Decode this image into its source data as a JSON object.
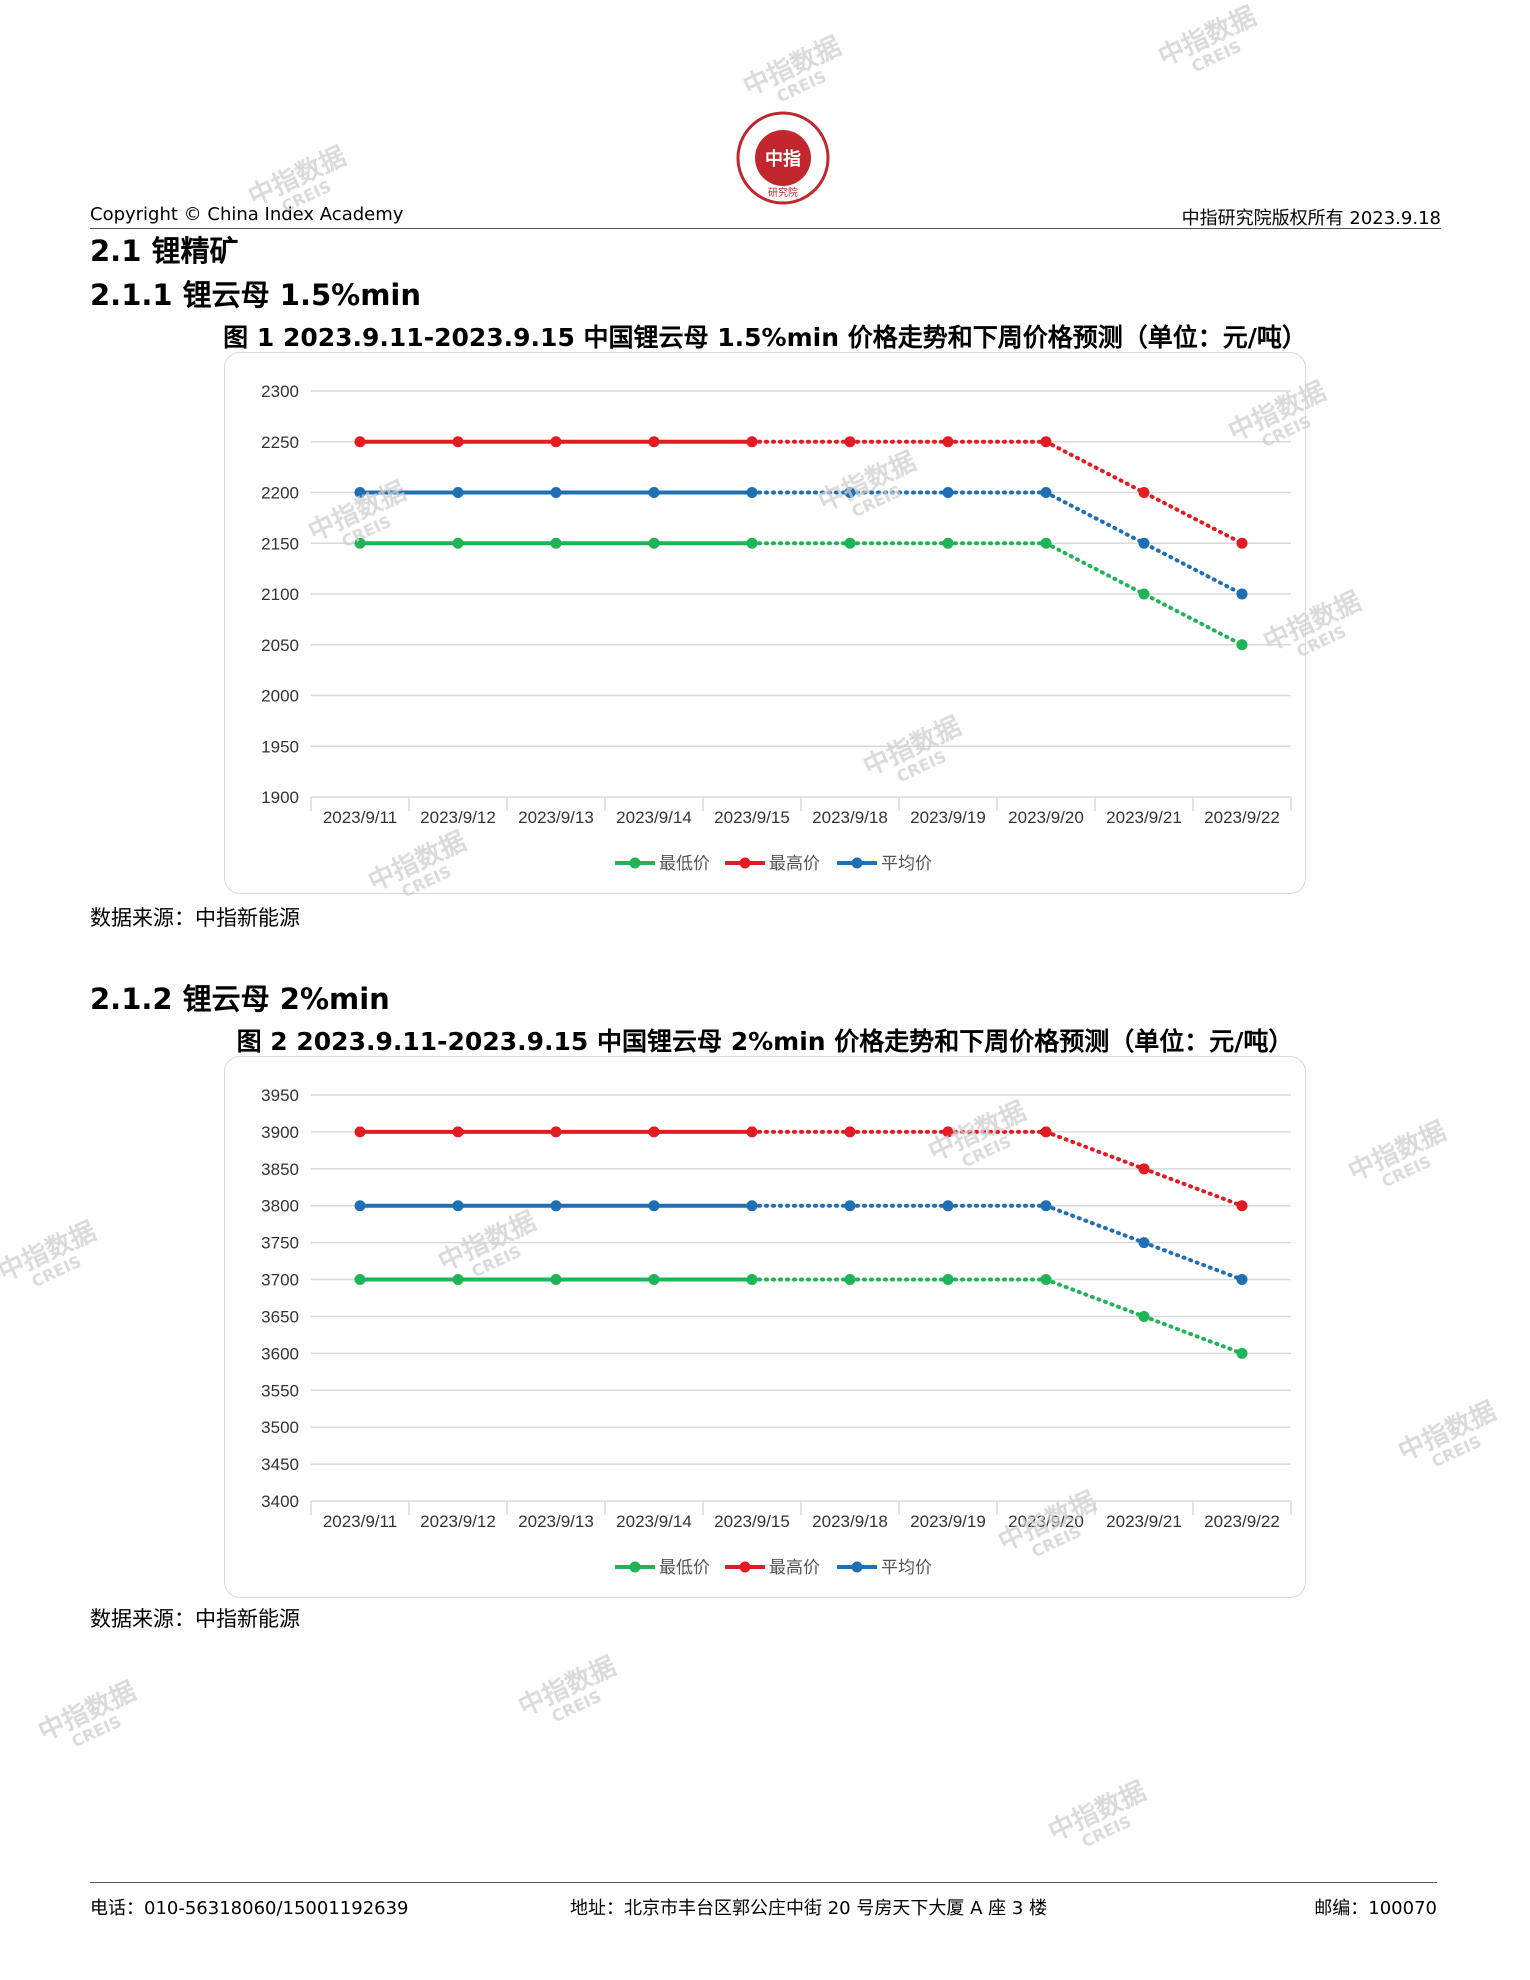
{
  "header": {
    "copyright": "Copyright © China Index Academy",
    "rights": "中指研究院版权所有 2023.9.18",
    "logo_text": "CHINA INDEX ACADEMY",
    "logo_center": "中指",
    "logo_bottom": "研究院"
  },
  "section": {
    "title": "2.1 锂精矿",
    "sub1": "2.1.1 锂云母 1.5%min",
    "sub2": "2.1.2 锂云母 2%min"
  },
  "source_note": "数据来源：中指新能源",
  "watermark": {
    "cn": "中指数据",
    "en": "CREIS"
  },
  "legend": [
    "最低价",
    "最高价",
    "平均价"
  ],
  "colors": {
    "min": "#1fb456",
    "max": "#e31b23",
    "avg": "#1f6fb5",
    "grid": "#d9d9d9"
  },
  "chart_data": [
    {
      "type": "line",
      "title": "图 1 2023.9.11-2023.9.15 中国锂云母 1.5%min 价格走势和下周价格预测（单位：元/吨）",
      "categories": [
        "2023/9/11",
        "2023/9/12",
        "2023/9/13",
        "2023/9/14",
        "2023/9/15",
        "2023/9/18",
        "2023/9/19",
        "2023/9/20",
        "2023/9/21",
        "2023/9/22"
      ],
      "ylim": [
        1900,
        2300
      ],
      "yticks": [
        1900,
        1950,
        2000,
        2050,
        2100,
        2150,
        2200,
        2250,
        2300
      ],
      "series": [
        {
          "name": "最低价",
          "key": "min",
          "values": [
            2150,
            2150,
            2150,
            2150,
            2150,
            2150,
            2150,
            2150,
            2100,
            2050
          ]
        },
        {
          "name": "最高价",
          "key": "max",
          "values": [
            2250,
            2250,
            2250,
            2250,
            2250,
            2250,
            2250,
            2250,
            2200,
            2150
          ]
        },
        {
          "name": "平均价",
          "key": "avg",
          "values": [
            2200,
            2200,
            2200,
            2200,
            2200,
            2200,
            2200,
            2200,
            2150,
            2100
          ]
        }
      ],
      "solid_through_index": 4,
      "grid": true,
      "legend_position": "bottom"
    },
    {
      "type": "line",
      "title": "图 2 2023.9.11-2023.9.15 中国锂云母 2%min 价格走势和下周价格预测（单位：元/吨）",
      "categories": [
        "2023/9/11",
        "2023/9/12",
        "2023/9/13",
        "2023/9/14",
        "2023/9/15",
        "2023/9/18",
        "2023/9/19",
        "2023/9/20",
        "2023/9/21",
        "2023/9/22"
      ],
      "ylim": [
        3400,
        3950
      ],
      "yticks": [
        3400,
        3450,
        3500,
        3550,
        3600,
        3650,
        3700,
        3750,
        3800,
        3850,
        3900,
        3950
      ],
      "series": [
        {
          "name": "最低价",
          "key": "min",
          "values": [
            3700,
            3700,
            3700,
            3700,
            3700,
            3700,
            3700,
            3700,
            3650,
            3600
          ]
        },
        {
          "name": "最高价",
          "key": "max",
          "values": [
            3900,
            3900,
            3900,
            3900,
            3900,
            3900,
            3900,
            3900,
            3850,
            3800
          ]
        },
        {
          "name": "平均价",
          "key": "avg",
          "values": [
            3800,
            3800,
            3800,
            3800,
            3800,
            3800,
            3800,
            3800,
            3750,
            3700
          ]
        }
      ],
      "solid_through_index": 4,
      "grid": true,
      "legend_position": "bottom"
    }
  ],
  "footer": {
    "phone": "电话：010-56318060/15001192639",
    "address": "地址：北京市丰台区郭公庄中街 20 号房天下大厦 A 座 3 楼",
    "zip": "邮编：100070"
  }
}
